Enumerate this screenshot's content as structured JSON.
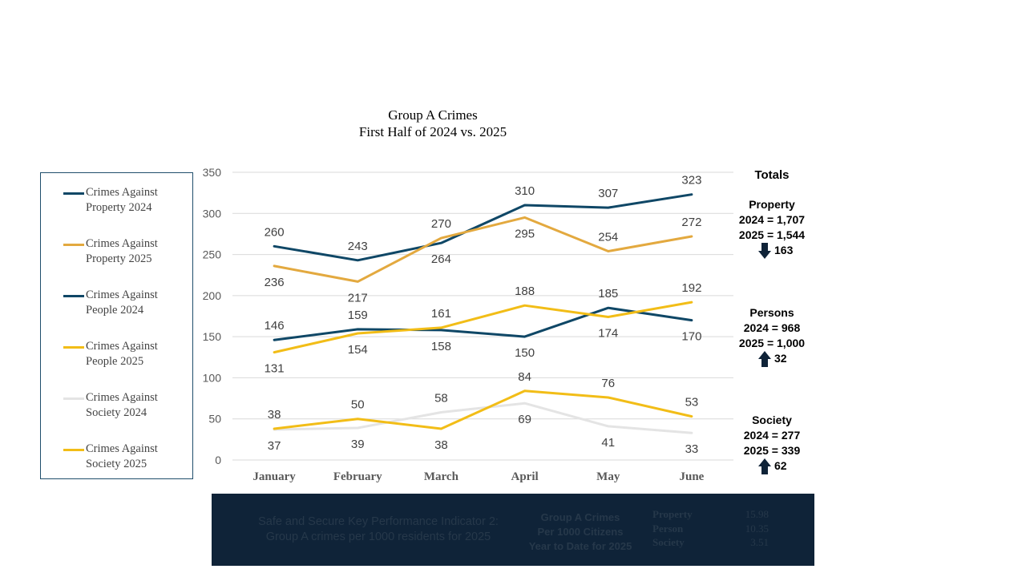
{
  "chart_data": {
    "type": "line",
    "title": "Group A Crimes",
    "subtitle": "First Half of 2024 vs. 2025",
    "categories": [
      "January",
      "February",
      "March",
      "April",
      "May",
      "June"
    ],
    "ylim": [
      0,
      350
    ],
    "yticks": [
      0,
      50,
      100,
      150,
      200,
      250,
      300,
      350
    ],
    "grid": true,
    "legend_position": "left",
    "series": [
      {
        "name": "Crimes Against Property 2024",
        "color": "#0f4766",
        "values": [
          260,
          243,
          264,
          310,
          307,
          323
        ],
        "labels": [
          "260",
          "243",
          "264",
          "310",
          "307",
          "323"
        ]
      },
      {
        "name": "Crimes Against Property 2025",
        "color": "#e3a93f",
        "values": [
          236,
          217,
          270,
          295,
          254,
          272
        ],
        "labels": [
          "236",
          "217",
          "270",
          "295",
          "254",
          "272"
        ]
      },
      {
        "name": "Crimes Against People 2024",
        "color": "#0f4766",
        "values": [
          146,
          159,
          158,
          150,
          185,
          170
        ],
        "labels": [
          "146",
          "159",
          "158",
          "150",
          "185",
          "170"
        ]
      },
      {
        "name": "Crimes Against People 2025",
        "color": "#f2bd17",
        "values": [
          131,
          154,
          161,
          188,
          174,
          192
        ],
        "labels": [
          "131",
          "154",
          "161",
          "188",
          "174",
          "192"
        ]
      },
      {
        "name": "Crimes Against Society 2024",
        "color": "#e4e4e4",
        "values": [
          37,
          39,
          58,
          69,
          41,
          33
        ],
        "labels": [
          "37",
          "39",
          "58",
          "69",
          "41",
          "33"
        ]
      },
      {
        "name": "Crimes Against Society 2025",
        "color": "#f2bd17",
        "values": [
          38,
          50,
          38,
          84,
          76,
          53
        ],
        "labels": [
          "38",
          "50",
          "38",
          "84",
          "76",
          "53"
        ]
      }
    ]
  },
  "legend": {
    "items": [
      {
        "line1": "Crimes Against",
        "line2": "Property 2024",
        "color": "#0f4766"
      },
      {
        "line1": "Crimes Against",
        "line2": "Property 2025",
        "color": "#e3a93f"
      },
      {
        "line1": "Crimes Against",
        "line2": "People 2024",
        "color": "#0f4766"
      },
      {
        "line1": "Crimes Against",
        "line2": "People 2025",
        "color": "#f2bd17"
      },
      {
        "line1": "Crimes Against",
        "line2": "Society 2024",
        "color": "#e4e4e4"
      },
      {
        "line1": "Crimes Against",
        "line2": "Society 2025",
        "color": "#f2bd17"
      }
    ]
  },
  "totals": {
    "heading": "Totals",
    "property": {
      "label": "Property",
      "y2024": "2024 = 1,707",
      "y2025": "2025 = 1,544",
      "direction": "down",
      "diff": "163"
    },
    "persons": {
      "label": "Persons",
      "y2024": "2024 = 968",
      "y2025": "2025 = 1,000",
      "direction": "up",
      "diff": "32"
    },
    "society": {
      "label": "Society",
      "y2024": "2024 = 277",
      "y2025": "2025 = 339",
      "direction": "up",
      "diff": "62"
    }
  },
  "kpi": {
    "desc_line1": "Safe and Secure Key Performance Indicator 2:",
    "desc_line2": "Group A crimes per 1000 residents for 2025",
    "mid_line1": "Group A Crimes",
    "mid_line2": "Per 1000 Citizens",
    "mid_line3": "Year to Date for 2025",
    "rows": [
      {
        "label": "Property",
        "value": "15.98"
      },
      {
        "label": "Person",
        "value": "10.35"
      },
      {
        "label": "Society",
        "value": "3.51"
      }
    ]
  },
  "colors": {
    "arrow": "#0f2338",
    "kpi_bg": "#0f2338"
  }
}
